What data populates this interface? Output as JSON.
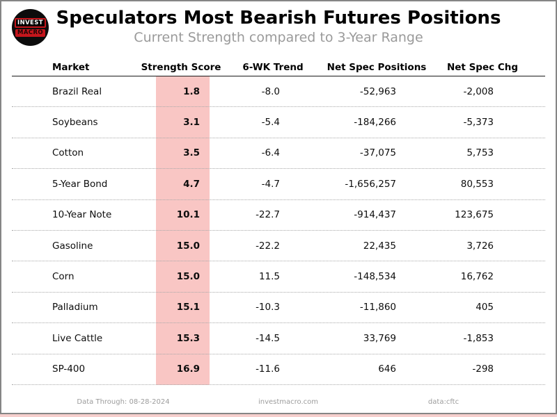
{
  "header": {
    "title": "Speculators Most Bearish Futures Positions",
    "subtitle": "Current Strength compared to 3-Year Range",
    "logo": {
      "line1": "INVEST",
      "line2": "MACRO"
    }
  },
  "table": {
    "columns": [
      "Market",
      "Strength Score",
      "6-WK Trend",
      "Net Spec Positions",
      "Net Spec Chg"
    ],
    "rows": [
      {
        "market": "Brazil Real",
        "strength_score": "1.8",
        "trend": "-8.0",
        "net_spec_positions": "-52,963",
        "net_spec_chg": "-2,008"
      },
      {
        "market": "Soybeans",
        "strength_score": "3.1",
        "trend": "-5.4",
        "net_spec_positions": "-184,266",
        "net_spec_chg": "-5,373"
      },
      {
        "market": "Cotton",
        "strength_score": "3.5",
        "trend": "-6.4",
        "net_spec_positions": "-37,075",
        "net_spec_chg": "5,753"
      },
      {
        "market": "5-Year Bond",
        "strength_score": "4.7",
        "trend": "-4.7",
        "net_spec_positions": "-1,656,257",
        "net_spec_chg": "80,553"
      },
      {
        "market": "10-Year Note",
        "strength_score": "10.1",
        "trend": "-22.7",
        "net_spec_positions": "-914,437",
        "net_spec_chg": "123,675"
      },
      {
        "market": "Gasoline",
        "strength_score": "15.0",
        "trend": "-22.2",
        "net_spec_positions": "22,435",
        "net_spec_chg": "3,726"
      },
      {
        "market": "Corn",
        "strength_score": "15.0",
        "trend": "11.5",
        "net_spec_positions": "-148,534",
        "net_spec_chg": "16,762"
      },
      {
        "market": "Palladium",
        "strength_score": "15.1",
        "trend": "-10.3",
        "net_spec_positions": "-11,860",
        "net_spec_chg": "405"
      },
      {
        "market": "Live Cattle",
        "strength_score": "15.3",
        "trend": "-14.5",
        "net_spec_positions": "33,769",
        "net_spec_chg": "-1,853"
      },
      {
        "market": "SP-400",
        "strength_score": "16.9",
        "trend": "-11.6",
        "net_spec_positions": "646",
        "net_spec_chg": "-298"
      }
    ]
  },
  "footer": {
    "data_through": "Data Through: 08-28-2024",
    "website": "investmacro.com",
    "source": "data:cftc"
  },
  "colors": {
    "highlight_pink": "#f9c6c4",
    "logo_red": "#c4161c",
    "subtitle_gray": "#9a9a9a",
    "frame_gray": "#858585"
  },
  "chart_data": {
    "type": "table",
    "title": "Speculators Most Bearish Futures Positions",
    "subtitle": "Current Strength compared to 3-Year Range",
    "columns": [
      "Market",
      "Strength Score",
      "6-WK Trend",
      "Net Spec Positions",
      "Net Spec Chg"
    ],
    "rows": [
      [
        "Brazil Real",
        1.8,
        -8.0,
        -52963,
        -2008
      ],
      [
        "Soybeans",
        3.1,
        -5.4,
        -184266,
        -5373
      ],
      [
        "Cotton",
        3.5,
        -6.4,
        -37075,
        5753
      ],
      [
        "5-Year Bond",
        4.7,
        -4.7,
        -1656257,
        80553
      ],
      [
        "10-Year Note",
        10.1,
        -22.7,
        -914437,
        123675
      ],
      [
        "Gasoline",
        15.0,
        -22.2,
        22435,
        3726
      ],
      [
        "Corn",
        15.0,
        11.5,
        -148534,
        16762
      ],
      [
        "Palladium",
        15.1,
        -10.3,
        -11860,
        405
      ],
      [
        "Live Cattle",
        15.3,
        -14.5,
        33769,
        -1853
      ],
      [
        "SP-400",
        16.9,
        -11.6,
        646,
        -298
      ]
    ],
    "layout": {
      "highlighted_column": "Strength Score",
      "highlight_color": "#f9c6c4",
      "row_separators": "dotted"
    }
  }
}
